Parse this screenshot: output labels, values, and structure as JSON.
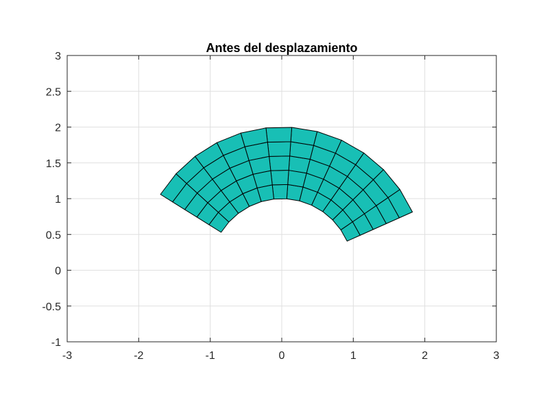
{
  "chart_data": {
    "type": "mesh",
    "title": "Antes del desplazamiento",
    "xlabel": "",
    "ylabel": "",
    "xlim": [
      -3,
      3
    ],
    "ylim": [
      -1,
      3
    ],
    "xticks": [
      -3,
      -2,
      -1,
      0,
      1,
      2,
      3
    ],
    "yticks": [
      -1,
      -0.5,
      0,
      0.5,
      1,
      1.5,
      2,
      2.5,
      3
    ],
    "xtick_labels": [
      "-3",
      "-2",
      "-1",
      "0",
      "1",
      "2",
      "3"
    ],
    "ytick_labels": [
      "-1",
      "-0.5",
      "0",
      "0.5",
      "1",
      "1.5",
      "2",
      "2.5",
      "3"
    ],
    "grid": true,
    "mesh": {
      "shape": "annular sector",
      "inner_radius": 1,
      "outer_radius": 2,
      "theta_start_deg": 24,
      "theta_end_deg": 148,
      "radial_divisions": 5,
      "angular_divisions": 12,
      "face_color": "#18bfb5",
      "edge_color": "#000000"
    }
  }
}
